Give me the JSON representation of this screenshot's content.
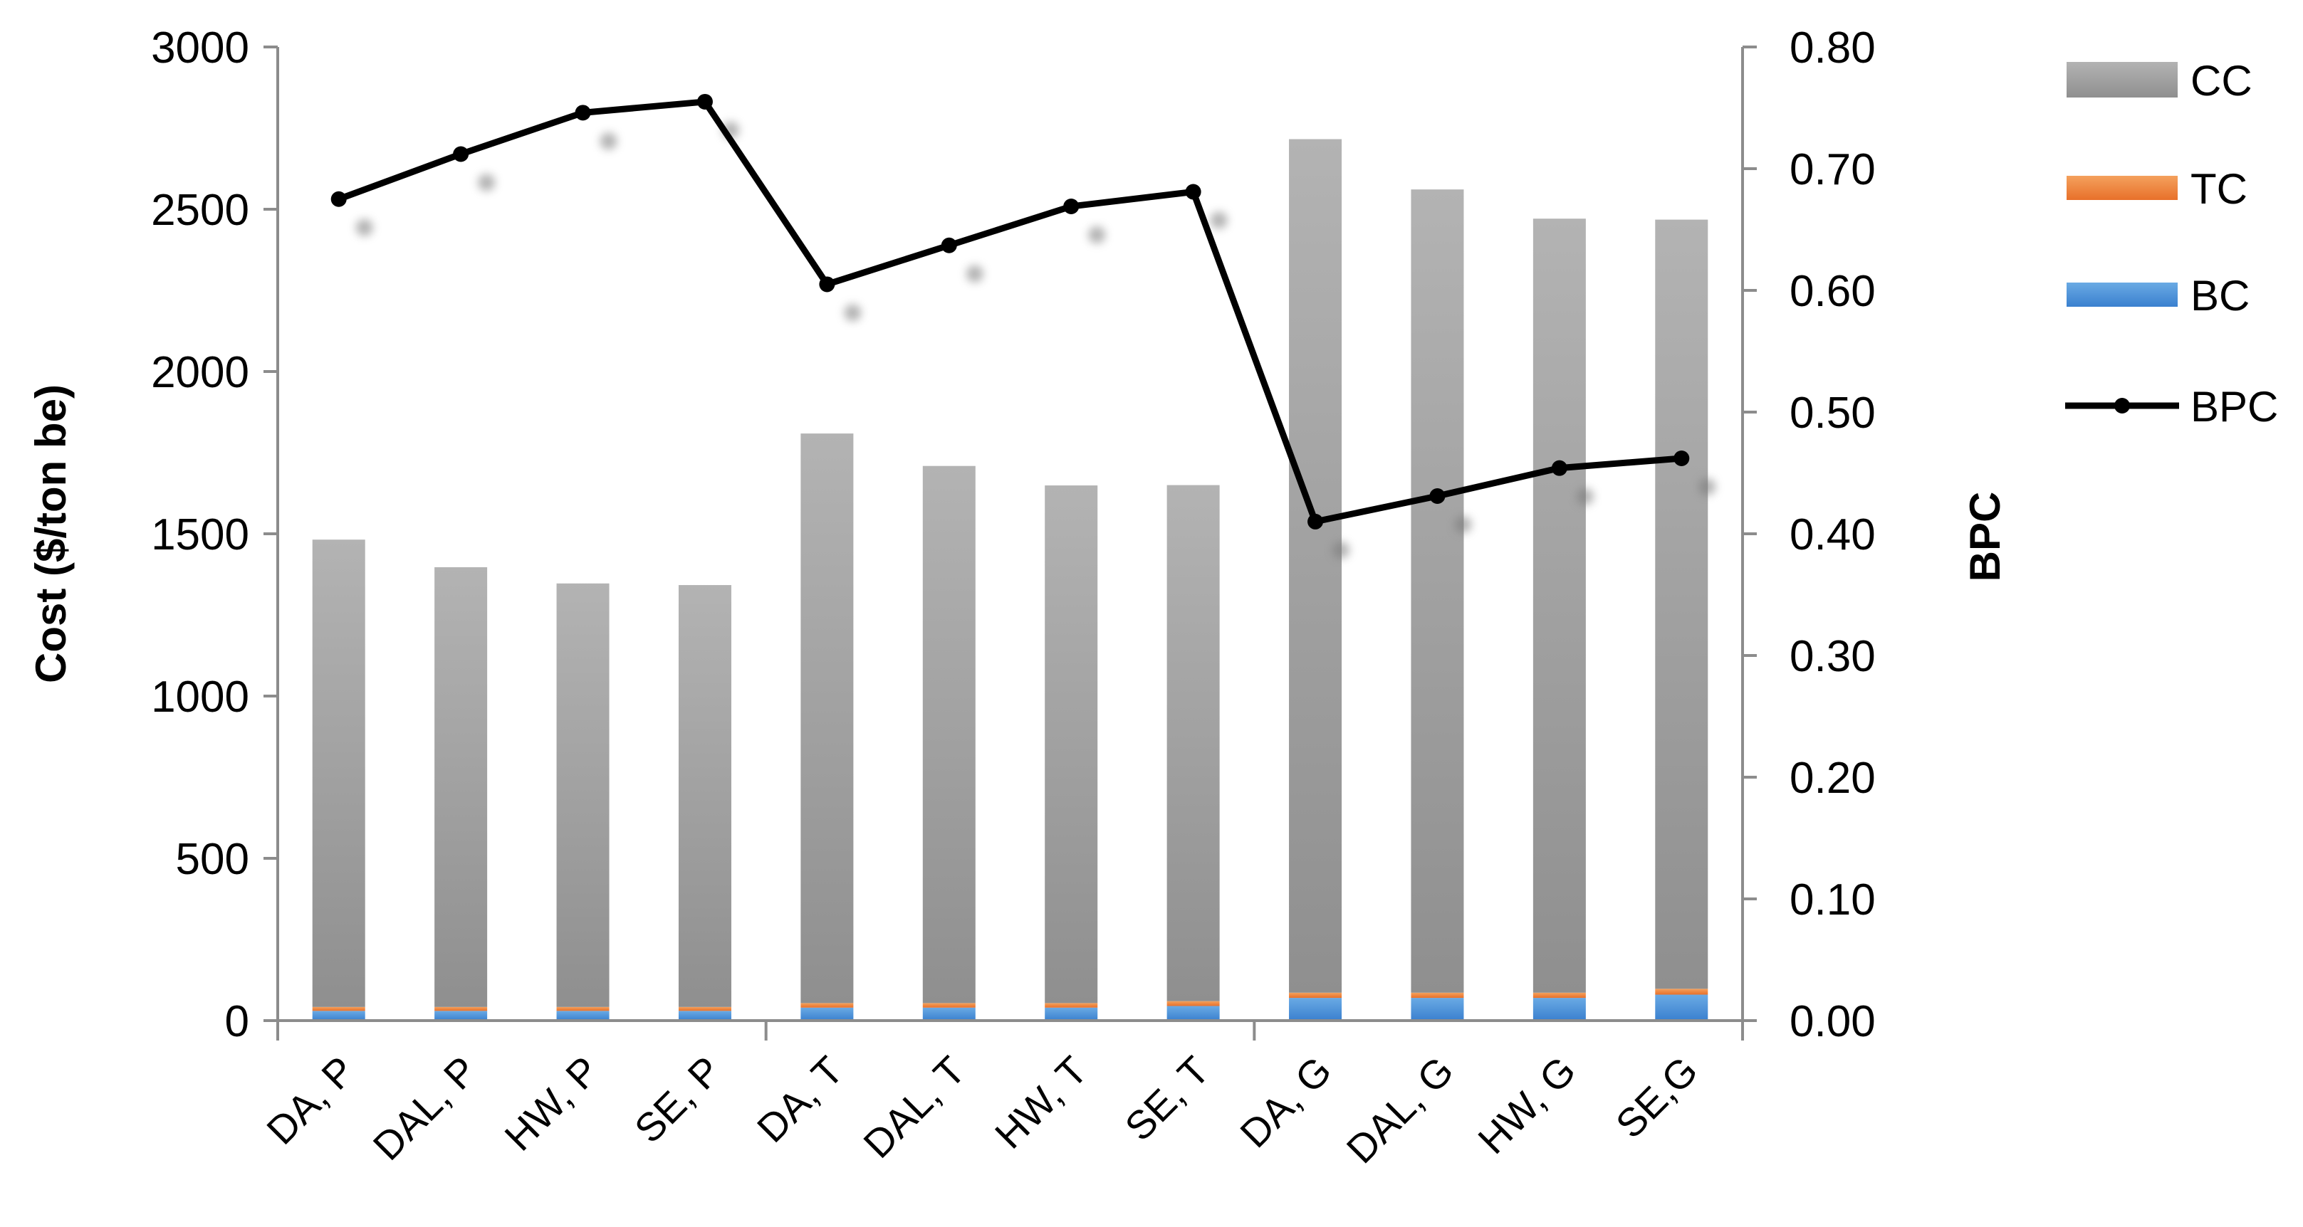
{
  "chart_data": {
    "type": "bar",
    "stacked": true,
    "categories": [
      "DA, P",
      "DAL, P",
      "HW, P",
      "SE, P",
      "DA, T",
      "DAL, T",
      "HW, T",
      "SE, T",
      "DA, G",
      "DAL, G",
      "HW, G",
      "SE,G"
    ],
    "series": [
      {
        "name": "BC",
        "type": "bar",
        "axis": "left",
        "color": "#4a90d9",
        "values": [
          30,
          30,
          30,
          30,
          40,
          40,
          40,
          45,
          70,
          70,
          70,
          80
        ]
      },
      {
        "name": "TC",
        "type": "bar",
        "axis": "left",
        "color": "#ed7d31",
        "values": [
          12,
          12,
          12,
          12,
          14,
          14,
          14,
          15,
          16,
          16,
          16,
          18
        ]
      },
      {
        "name": "CC",
        "type": "bar",
        "axis": "left",
        "color": "#a6a6a6",
        "values": [
          1440,
          1355,
          1305,
          1300,
          1755,
          1655,
          1595,
          1590,
          2630,
          2475,
          2385,
          2370
        ]
      },
      {
        "name": "BPC",
        "type": "line",
        "axis": "right",
        "color": "#000000",
        "values": [
          0.675,
          0.712,
          0.746,
          0.755,
          0.605,
          0.637,
          0.669,
          0.681,
          0.41,
          0.431,
          0.454,
          0.462
        ]
      }
    ],
    "ylabel": "Cost ($/ton be)",
    "y2label": "BPC",
    "ylim": [
      0,
      3000
    ],
    "y2lim": [
      0,
      0.8
    ],
    "yticks": [
      "0",
      "500",
      "1000",
      "1500",
      "2000",
      "2500",
      "3000"
    ],
    "y2ticks": [
      "0.00",
      "0.10",
      "0.20",
      "0.30",
      "0.40",
      "0.50",
      "0.60",
      "0.70",
      "0.80"
    ],
    "legend": [
      "CC",
      "TC",
      "BC",
      "BPC"
    ],
    "legend_position": "right",
    "grid": false
  }
}
